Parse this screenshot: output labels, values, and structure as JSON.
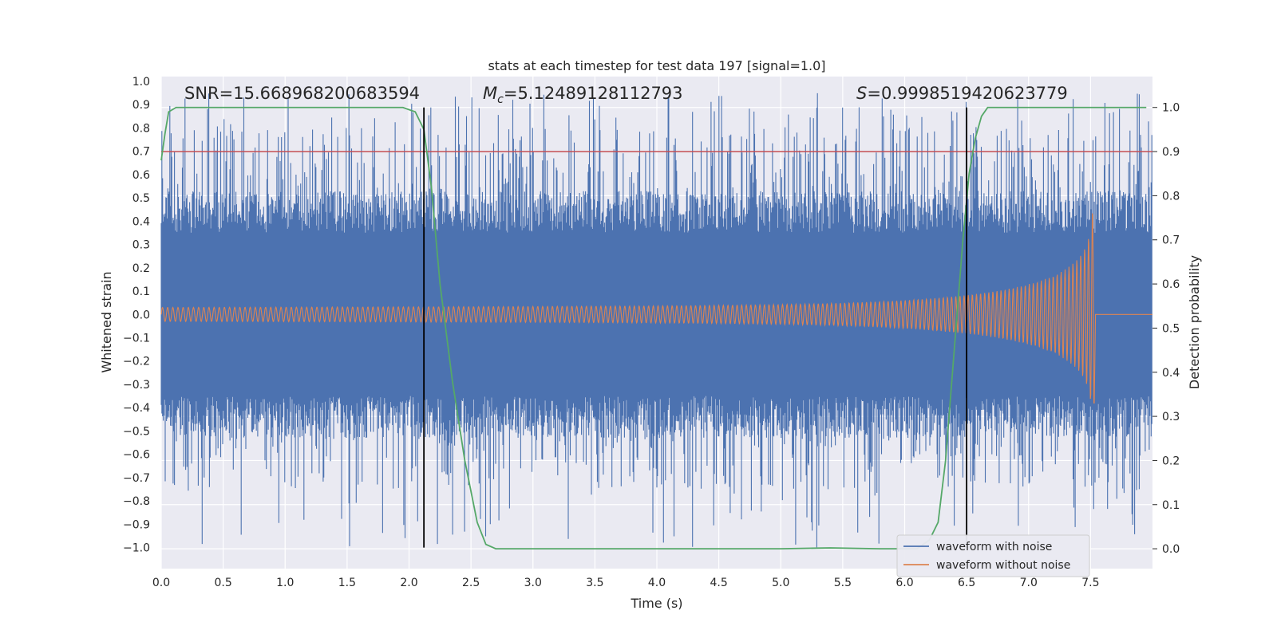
{
  "chart_data": {
    "type": "line",
    "title": "stats at each timestep for test data 197 [signal=1.0]",
    "xlabel": "Time (s)",
    "ylabel_left": "Whitened strain",
    "ylabel_right": "Detection probability",
    "xlim": [
      0.0,
      8.0
    ],
    "ylim_left": [
      -1.09,
      1.02
    ],
    "ylim_right": [
      -0.045,
      1.07
    ],
    "x_ticks": [
      "0.0",
      "0.5",
      "1.0",
      "1.5",
      "2.0",
      "2.5",
      "3.0",
      "3.5",
      "4.0",
      "4.5",
      "5.0",
      "5.5",
      "6.0",
      "6.5",
      "7.0",
      "7.5"
    ],
    "y_ticks_left": [
      "1.0",
      "0.9",
      "0.8",
      "0.7",
      "0.6",
      "0.5",
      "0.4",
      "0.3",
      "0.2",
      "0.1",
      "0.0",
      "−0.1",
      "−0.2",
      "−0.3",
      "−0.4",
      "−0.5",
      "−0.6",
      "−0.7",
      "−0.8",
      "−0.9",
      "−1.0"
    ],
    "y_ticks_right": [
      "1.0",
      "0.9",
      "0.8",
      "0.7",
      "0.6",
      "0.5",
      "0.4",
      "0.3",
      "0.2",
      "0.1",
      "0.0"
    ],
    "grid": true,
    "series": [
      {
        "name": "waveform with noise",
        "color": "#4c72b0",
        "axis": "left",
        "description_values": {
          "noise_amplitude": 0.35,
          "spike_max": 0.95,
          "spike_min": -1.0
        }
      },
      {
        "name": "waveform without noise",
        "color": "#dd8452",
        "axis": "left",
        "chirp": {
          "start_amplitude": 0.03,
          "peak_time": 7.53,
          "peak_amplitude": 0.43,
          "min_amplitude": -0.38
        }
      },
      {
        "name": "detection probability",
        "color": "#55a868",
        "axis": "right",
        "x": [
          0.0,
          0.03,
          0.06,
          0.12,
          0.3,
          0.6,
          1.0,
          1.4,
          1.8,
          1.95,
          2.05,
          2.12,
          2.18,
          2.25,
          2.35,
          2.45,
          2.55,
          2.62,
          2.7,
          2.8,
          3.0,
          4.0,
          5.0,
          5.4,
          5.8,
          6.1,
          6.2,
          6.27,
          6.33,
          6.4,
          6.47,
          6.52,
          6.57,
          6.62,
          6.67,
          7.0,
          7.5,
          7.95
        ],
        "y": [
          0.88,
          0.94,
          0.99,
          1.0,
          1.0,
          1.0,
          1.0,
          1.0,
          1.0,
          1.0,
          0.99,
          0.95,
          0.82,
          0.6,
          0.38,
          0.2,
          0.06,
          0.01,
          0.0,
          0.0,
          0.0,
          0.0,
          0.0,
          0.002,
          0.0,
          0.0,
          0.02,
          0.06,
          0.2,
          0.45,
          0.7,
          0.85,
          0.93,
          0.98,
          1.0,
          1.0,
          1.0,
          1.0
        ]
      }
    ],
    "threshold_line": {
      "axis": "right",
      "value": 0.9,
      "color": "#c44e52"
    },
    "vertical_lines": [
      2.12,
      6.5
    ],
    "annotations": [
      {
        "prefix": "SNR=",
        "value": "15.668968200683594",
        "x": 0.2
      },
      {
        "prefix": "M",
        "subscript": "c",
        "suffix": "=",
        "value": "5.12489128112793",
        "x": 2.6
      },
      {
        "prefix": "S",
        "suffix": "=",
        "value": "0.9998519420623779",
        "x": 5.6
      }
    ],
    "legend": {
      "placement": "bottom-right",
      "entries": [
        "waveform with noise",
        "waveform without noise"
      ]
    }
  }
}
